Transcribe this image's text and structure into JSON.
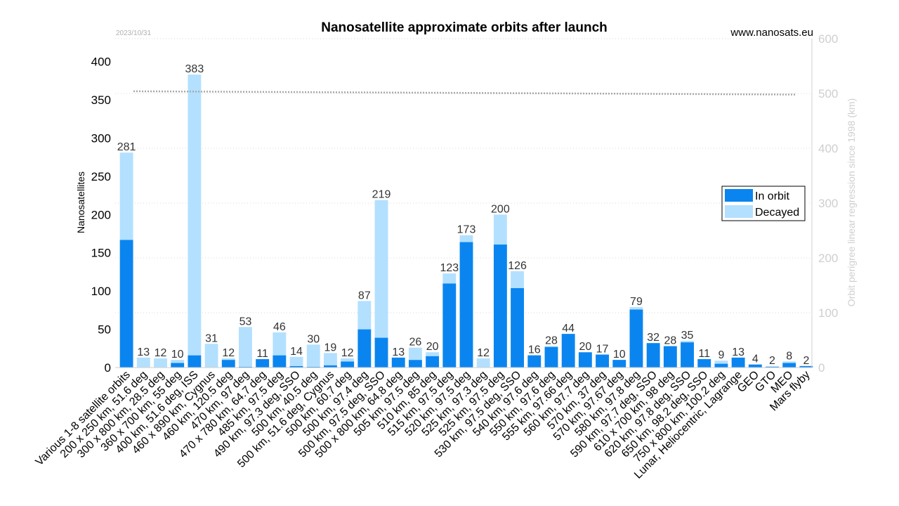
{
  "chart_data": {
    "type": "bar",
    "stacked": true,
    "title": "Nanosatellite approximate orbits after launch",
    "date": "2023/10/31",
    "source": "www.nanosats.eu",
    "ylabel": "Nanosatellites",
    "y2label": "Orbit perigree linear regression since 1998 (km)",
    "ylim": [
      0,
      430
    ],
    "y_ticks": [
      0,
      50,
      100,
      150,
      200,
      250,
      300,
      350,
      400
    ],
    "y2lim": [
      0,
      600
    ],
    "y2_ticks": [
      0,
      100,
      200,
      300,
      400,
      500,
      600
    ],
    "legend_position": "right",
    "grid": true,
    "categories": [
      "Various 1-8 satellite orbits",
      "200 x 250 km, 51.6 deg",
      "300 x 800 km, 28.5 deg",
      "360 x 700 km, 55 deg",
      "400 km, 51.6 deg, ISS",
      "460 x 890 km, Cygnus",
      "460 km, 120.5 deg",
      "470 km, 97 deg",
      "470 x 780 km, 64.7 deg",
      "485 km, 97.5 deg",
      "490 km, 97.3 deg, SSO",
      "500 km, 40.5 deg",
      "500 km, 51.6 deg, Cygnus",
      "500 km, 60.7 deg",
      "500 km, 97.4 deg",
      "500 km, 97.5 deg, SSO",
      "500 x 800 km, 64.8 deg",
      "505 km, 97.5 deg",
      "510 km, 85 deg",
      "515 km, 97.5 deg",
      "520 km, 97.5 deg",
      "525 km, 97.3 deg",
      "525 km, 97.5 deg",
      "530 km, 97.5 deg, SSO",
      "540 km, 97.6 deg",
      "550 km, 97.6 deg",
      "555 km, 97.66 deg",
      "560 km, 97.7 deg",
      "570 km, 37 deg",
      "570 km, 97.67 deg",
      "580 km, 97.8 deg",
      "590 km, 97.7 deg, SSO",
      "610 x 700 km, 98 deg",
      "620 km, 97.8 deg, SSO",
      "650 km, 98.2 deg, SSO",
      "750 x 800 km, 100.2 deg",
      "Lunar, Heliocentric, Lagrange",
      "GEO",
      "GTO",
      "MEO",
      "Mars flyby"
    ],
    "totals": [
      281,
      13,
      12,
      10,
      383,
      31,
      12,
      53,
      11,
      46,
      14,
      30,
      19,
      12,
      87,
      219,
      13,
      26,
      20,
      123,
      173,
      12,
      200,
      126,
      16,
      28,
      44,
      20,
      17,
      10,
      79,
      32,
      28,
      35,
      11,
      9,
      13,
      4,
      2,
      8,
      2
    ],
    "series": [
      {
        "name": "In orbit",
        "color": "#0a85f0",
        "values": [
          167,
          0,
          0,
          6,
          16,
          0,
          10,
          1,
          11,
          16,
          2,
          1,
          3,
          8,
          50,
          39,
          13,
          10,
          15,
          110,
          164,
          0,
          161,
          104,
          16,
          27,
          44,
          20,
          17,
          10,
          76,
          32,
          28,
          33,
          11,
          5,
          13,
          4,
          1,
          6,
          2
        ]
      },
      {
        "name": "Decayed",
        "color": "#b3e0ff",
        "values": [
          114,
          13,
          12,
          4,
          367,
          31,
          2,
          52,
          0,
          30,
          12,
          29,
          16,
          4,
          37,
          180,
          0,
          16,
          5,
          13,
          9,
          12,
          39,
          22,
          0,
          1,
          0,
          0,
          0,
          0,
          3,
          0,
          0,
          2,
          0,
          4,
          0,
          0,
          1,
          2,
          0
        ]
      }
    ],
    "trend_line": {
      "axis": "y2",
      "color": "#a8a8a8",
      "start_value": 504,
      "end_value": 498
    }
  }
}
